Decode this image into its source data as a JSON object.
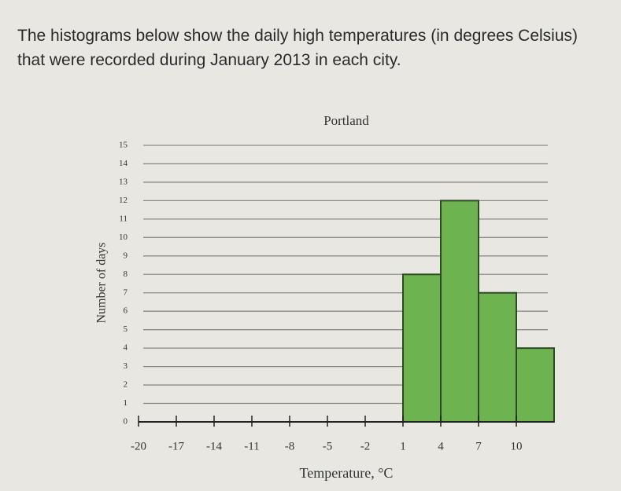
{
  "intro": "The histograms below show the daily high temperatures (in degrees Celsius) that were recorded during January 2013 in each city.",
  "chart_data": {
    "type": "histogram",
    "title": "Portland",
    "xlabel": "Temperature, °C",
    "ylabel": "Number of days",
    "bins": [
      -20,
      -17,
      -14,
      -11,
      -8,
      -5,
      -2,
      1,
      4,
      7,
      10,
      13
    ],
    "values": [
      0,
      0,
      0,
      0,
      0,
      0,
      0,
      8,
      12,
      7,
      4
    ],
    "color": "#6db34f",
    "xlim": [
      -20,
      13
    ],
    "xticks": [
      -20,
      -17,
      -14,
      -11,
      -8,
      -5,
      -2,
      1,
      4,
      7,
      10
    ],
    "ylim": [
      0,
      15
    ],
    "yticks": [
      0,
      1,
      2,
      3,
      4,
      5,
      6,
      7,
      8,
      9,
      10,
      11,
      12,
      13,
      14,
      15
    ],
    "grid": true
  }
}
